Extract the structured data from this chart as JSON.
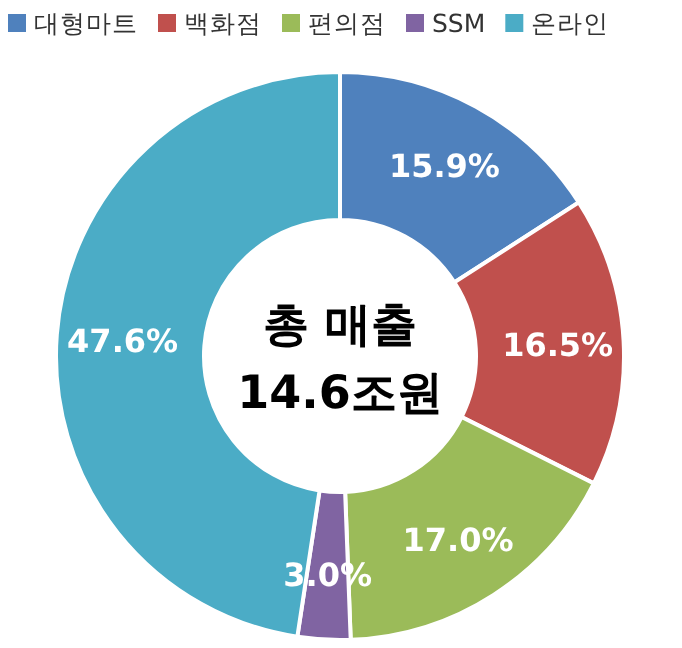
{
  "chart_data": {
    "type": "donut",
    "categories": [
      "대형마트",
      "백화점",
      "편의점",
      "SSM",
      "온라인"
    ],
    "values": [
      15.9,
      16.5,
      17.0,
      3.0,
      47.6
    ],
    "colors": [
      "#4f81bd",
      "#c0504d",
      "#9bbb59",
      "#8064a2",
      "#4bacc6"
    ],
    "value_labels": [
      "15.9%",
      "16.5%",
      "17.0%",
      "3.0%",
      "47.6%"
    ],
    "legend": "top",
    "annotations": [
      "총 매출",
      "14.6조원"
    ]
  }
}
